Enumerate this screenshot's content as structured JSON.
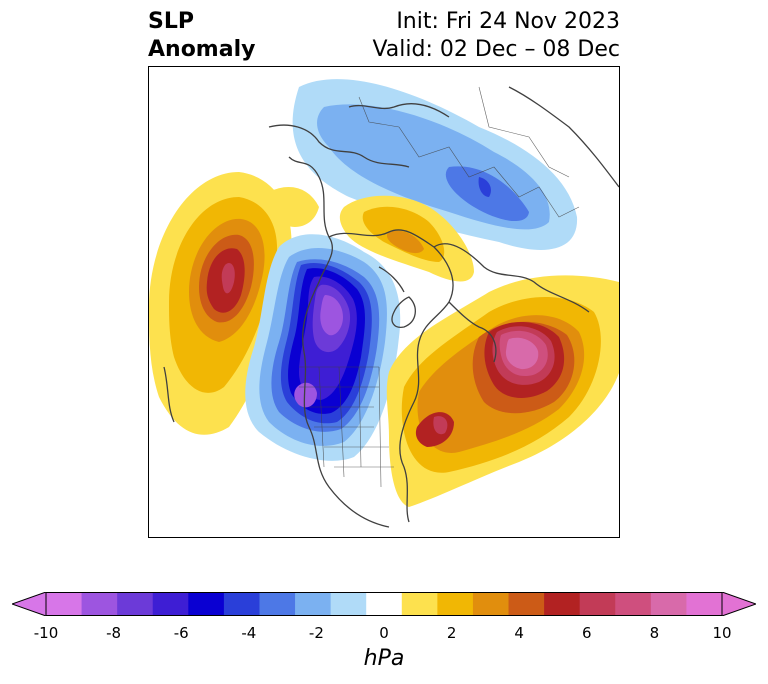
{
  "title": {
    "left_line1": "SLP",
    "left_line2": "Anomaly",
    "init": "Init: Fri 24 Nov 2023",
    "valid": "Valid: 02 Dec – 08 Dec"
  },
  "colorbar": {
    "units": "hPa",
    "levels": [
      -10,
      -9,
      -8,
      -7,
      -6,
      -5,
      -4,
      -3,
      -2,
      -1,
      1,
      2,
      3,
      4,
      5,
      6,
      7,
      8,
      9,
      10
    ],
    "colors": [
      "#d776e8",
      "#9d55e0",
      "#6c3ad8",
      "#3e1ed4",
      "#0a00d2",
      "#2a3fd9",
      "#4d78e6",
      "#7bb1f1",
      "#b0dbf8",
      "#ffffff",
      "#fde14e",
      "#f1b704",
      "#e18e0d",
      "#cc5b17",
      "#b22222",
      "#c23b57",
      "#cf4f7e",
      "#d86aaa",
      "#e272d4"
    ],
    "extend_low_color": "#d776e8",
    "extend_high_color": "#e272d4",
    "tick_labels": [
      "-10",
      "-8",
      "-6",
      "-4",
      "-2",
      "0",
      "2",
      "4",
      "6",
      "8",
      "10"
    ]
  }
}
